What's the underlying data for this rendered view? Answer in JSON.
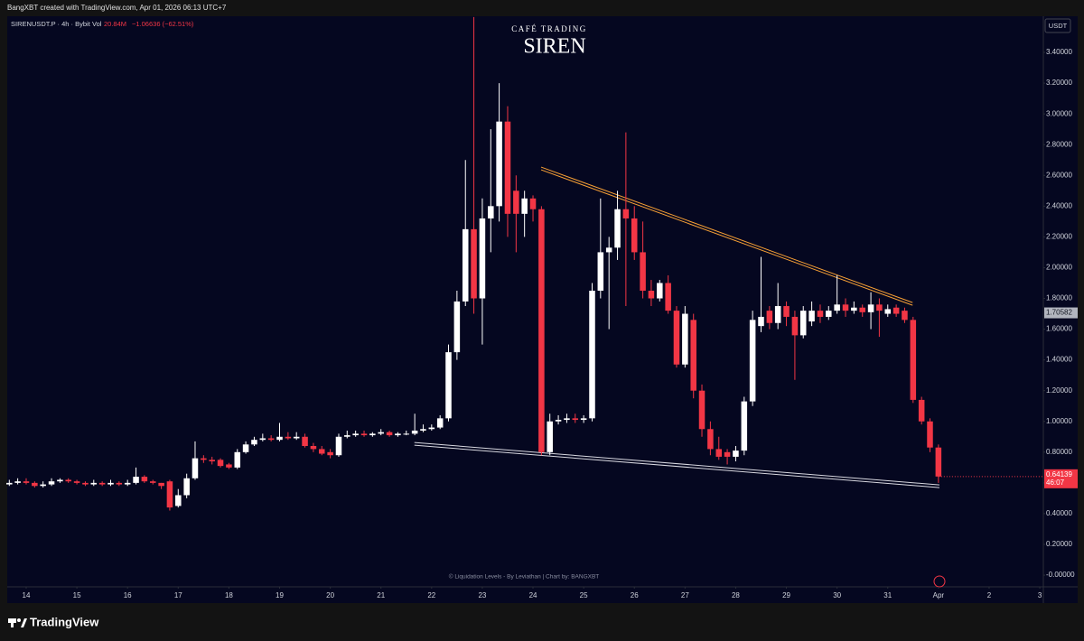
{
  "header": "BangXBT created with TradingView.com, Apr 01, 2026 06:13 UTC+7",
  "footer": {
    "logo": "TradingView"
  },
  "chart_data": {
    "type": "candlestick",
    "symbol": "SIRENUSDT.P · 4h · Bybit",
    "volume_label": "Vol",
    "volume": "20.84M",
    "change": "−1.06636 (−62.51%)",
    "brand": "CAFÉ TRADING",
    "title": "SIREN",
    "currency": "USDT",
    "watermark": "© Liquidation Levels - By Leviathan | Chart by: BANGXBT",
    "countdown": "46:07",
    "marker_price": 1.70582,
    "up_color": "#ffffff",
    "down_color": "#f23645",
    "x": [
      13.667,
      13.833,
      14,
      14.167,
      14.333,
      14.5,
      14.667,
      14.833,
      15,
      15.167,
      15.333,
      15.5,
      15.667,
      15.833,
      16,
      16.167,
      16.333,
      16.5,
      16.667,
      16.833,
      17,
      17.167,
      17.333,
      17.5,
      17.667,
      17.833,
      18,
      18.167,
      18.333,
      18.5,
      18.667,
      18.833,
      19,
      19.167,
      19.333,
      19.5,
      19.667,
      19.833,
      20,
      20.167,
      20.333,
      20.5,
      20.667,
      20.833,
      21,
      21.167,
      21.333,
      21.5,
      21.667,
      21.833,
      22,
      22.167,
      22.333,
      22.5,
      22.667,
      22.833,
      23,
      23.167,
      23.333,
      23.5,
      23.667,
      23.833,
      24,
      24.167,
      24.333,
      24.5,
      24.667,
      24.833,
      25,
      25.167,
      25.333,
      25.5,
      25.667,
      25.833,
      26,
      26.167,
      26.333,
      26.5,
      26.667,
      26.833,
      27,
      27.167,
      27.333,
      27.5,
      27.667,
      27.833,
      28,
      28.167,
      28.333,
      28.5,
      28.667,
      28.833,
      29,
      29.167,
      29.333,
      29.5,
      29.667,
      29.833,
      30,
      30.167,
      30.333,
      30.5,
      30.667,
      30.833,
      31,
      31.167,
      31.333,
      31.5,
      31.667,
      31.833,
      32
    ],
    "open": [
      0.59,
      0.6,
      0.61,
      0.6,
      0.58,
      0.59,
      0.61,
      0.62,
      0.61,
      0.6,
      0.59,
      0.6,
      0.59,
      0.6,
      0.59,
      0.6,
      0.64,
      0.61,
      0.6,
      0.61,
      0.45,
      0.52,
      0.63,
      0.76,
      0.75,
      0.75,
      0.72,
      0.7,
      0.8,
      0.85,
      0.88,
      0.89,
      0.88,
      0.9,
      0.89,
      0.9,
      0.84,
      0.82,
      0.8,
      0.78,
      0.9,
      0.91,
      0.92,
      0.91,
      0.92,
      0.93,
      0.91,
      0.92,
      0.92,
      0.94,
      0.95,
      0.96,
      1.02,
      1.45,
      1.78,
      2.25,
      1.8,
      2.32,
      2.4,
      2.95,
      2.5,
      2.35,
      2.45,
      2.38,
      0.8,
      1.0,
      1.01,
      1.02,
      1.01,
      1.02,
      1.85,
      2.1,
      2.13,
      2.38,
      2.32,
      2.1,
      1.85,
      1.8,
      1.9,
      1.72,
      1.37,
      1.66,
      1.2,
      0.95,
      0.82,
      0.8,
      0.77,
      0.81,
      1.13,
      1.62,
      1.72,
      1.64,
      1.75,
      1.68,
      1.56,
      1.65,
      1.72,
      1.68,
      1.72,
      1.76,
      1.72,
      1.74,
      1.71,
      1.76,
      1.7,
      1.74,
      1.72,
      1.66,
      1.14,
      1.0,
      0.83
    ],
    "high": [
      0.62,
      0.63,
      0.63,
      0.61,
      0.61,
      0.63,
      0.63,
      0.63,
      0.62,
      0.61,
      0.62,
      0.61,
      0.62,
      0.61,
      0.62,
      0.7,
      0.65,
      0.62,
      0.6,
      0.62,
      0.56,
      0.66,
      0.87,
      0.78,
      0.77,
      0.76,
      0.73,
      0.82,
      0.87,
      0.9,
      0.92,
      0.91,
      0.99,
      0.93,
      0.93,
      0.92,
      0.86,
      0.84,
      0.82,
      0.92,
      0.94,
      0.94,
      0.94,
      0.93,
      0.95,
      0.94,
      0.93,
      0.94,
      1.05,
      0.98,
      0.98,
      1.04,
      1.5,
      1.85,
      2.7,
      3.63,
      2.45,
      2.9,
      3.2,
      3.05,
      2.6,
      2.5,
      2.47,
      2.4,
      1.05,
      1.04,
      1.05,
      1.05,
      1.04,
      1.9,
      2.45,
      2.2,
      2.5,
      2.88,
      2.4,
      2.3,
      1.92,
      1.92,
      1.95,
      1.75,
      1.75,
      1.7,
      1.24,
      1.0,
      0.9,
      0.82,
      0.84,
      1.16,
      1.72,
      2.07,
      1.75,
      1.9,
      1.78,
      1.72,
      1.75,
      1.78,
      1.76,
      1.75,
      1.95,
      1.8,
      1.78,
      1.76,
      1.84,
      1.8,
      1.76,
      1.76,
      1.74,
      1.68,
      1.16,
      1.02,
      0.85
    ],
    "low": [
      0.58,
      0.59,
      0.59,
      0.57,
      0.57,
      0.58,
      0.6,
      0.6,
      0.59,
      0.58,
      0.58,
      0.58,
      0.58,
      0.58,
      0.58,
      0.59,
      0.6,
      0.59,
      0.56,
      0.42,
      0.44,
      0.5,
      0.62,
      0.73,
      0.72,
      0.7,
      0.69,
      0.69,
      0.79,
      0.84,
      0.87,
      0.87,
      0.87,
      0.88,
      0.88,
      0.83,
      0.8,
      0.78,
      0.76,
      0.77,
      0.89,
      0.9,
      0.9,
      0.9,
      0.91,
      0.9,
      0.9,
      0.91,
      0.91,
      0.93,
      0.94,
      0.95,
      1.0,
      1.4,
      1.75,
      1.7,
      1.5,
      2.1,
      2.3,
      2.2,
      2.1,
      2.2,
      2.3,
      0.78,
      0.78,
      0.98,
      0.99,
      0.99,
      0.99,
      1.0,
      1.8,
      1.6,
      2.05,
      1.75,
      2.05,
      1.8,
      1.75,
      1.78,
      1.7,
      1.35,
      1.35,
      1.15,
      0.9,
      0.78,
      0.75,
      0.72,
      0.74,
      0.78,
      1.1,
      1.58,
      1.6,
      1.6,
      1.62,
      1.27,
      1.54,
      1.62,
      1.64,
      1.66,
      1.7,
      1.68,
      1.7,
      1.68,
      1.6,
      1.55,
      1.68,
      1.68,
      1.64,
      1.12,
      0.98,
      0.8,
      0.6
    ],
    "close": [
      0.6,
      0.61,
      0.6,
      0.58,
      0.59,
      0.61,
      0.62,
      0.61,
      0.6,
      0.59,
      0.6,
      0.59,
      0.6,
      0.59,
      0.6,
      0.64,
      0.61,
      0.6,
      0.58,
      0.44,
      0.52,
      0.63,
      0.76,
      0.75,
      0.74,
      0.71,
      0.7,
      0.8,
      0.85,
      0.88,
      0.89,
      0.88,
      0.9,
      0.89,
      0.9,
      0.84,
      0.82,
      0.79,
      0.78,
      0.9,
      0.91,
      0.92,
      0.91,
      0.92,
      0.93,
      0.91,
      0.92,
      0.92,
      0.94,
      0.95,
      0.96,
      1.02,
      1.45,
      1.78,
      2.25,
      1.8,
      2.32,
      2.4,
      2.95,
      2.35,
      2.35,
      2.45,
      2.38,
      0.8,
      1.0,
      1.01,
      1.02,
      1.01,
      1.02,
      1.85,
      2.1,
      2.13,
      2.38,
      2.32,
      2.1,
      1.85,
      1.8,
      1.9,
      1.72,
      1.37,
      1.7,
      1.2,
      0.95,
      0.82,
      0.77,
      0.77,
      0.81,
      1.13,
      1.66,
      1.68,
      1.64,
      1.75,
      1.68,
      1.56,
      1.72,
      1.72,
      1.68,
      1.72,
      1.76,
      1.72,
      1.74,
      1.71,
      1.76,
      1.72,
      1.73,
      1.7,
      1.66,
      1.14,
      1.0,
      0.83,
      0.64139
    ],
    "trendlines": [
      {
        "color": "#f7a035",
        "x": [
          24.16,
          31.49
        ],
        "y": [
          2.654,
          1.773
        ]
      },
      {
        "color": "#d8d8e0",
        "x": [
          21.66,
          32.02
        ],
        "y": [
          0.863,
          0.587
        ]
      }
    ],
    "xlim": [
      13.626,
      34.07
    ],
    "ylim": [
      -0.076,
      3.635
    ],
    "grid": false,
    "xticks": [
      14,
      15,
      16,
      17,
      18,
      19,
      20,
      21,
      22,
      23,
      24,
      25,
      26,
      27,
      28,
      29,
      30,
      31,
      {
        "value": 32,
        "label": "Apr"
      },
      {
        "value": 33,
        "label": "2"
      },
      {
        "value": 34,
        "label": "3"
      }
    ],
    "yticks": [
      {
        "value": 3.4,
        "label": "3.40000"
      },
      {
        "value": 3.2,
        "label": "3.20000"
      },
      {
        "value": 3.0,
        "label": "3.00000"
      },
      {
        "value": 2.8,
        "label": "2.80000"
      },
      {
        "value": 2.6,
        "label": "2.60000"
      },
      {
        "value": 2.4,
        "label": "2.40000"
      },
      {
        "value": 2.2,
        "label": "2.20000"
      },
      {
        "value": 2.0,
        "label": "2.00000"
      },
      {
        "value": 1.8,
        "label": "1.80000"
      },
      {
        "value": 1.6,
        "label": "1.60000"
      },
      {
        "value": 1.4,
        "label": "1.40000"
      },
      {
        "value": 1.2,
        "label": "1.20000"
      },
      {
        "value": 1.0,
        "label": "1.00000"
      },
      {
        "value": 0.8,
        "label": "0.80000"
      },
      {
        "value": 0.6,
        "label": "0.60000"
      },
      {
        "value": 0.4,
        "label": "0.40000"
      },
      {
        "value": 0.2,
        "label": "0.20000"
      },
      {
        "value": 0,
        "label": "-0.00000"
      }
    ]
  }
}
